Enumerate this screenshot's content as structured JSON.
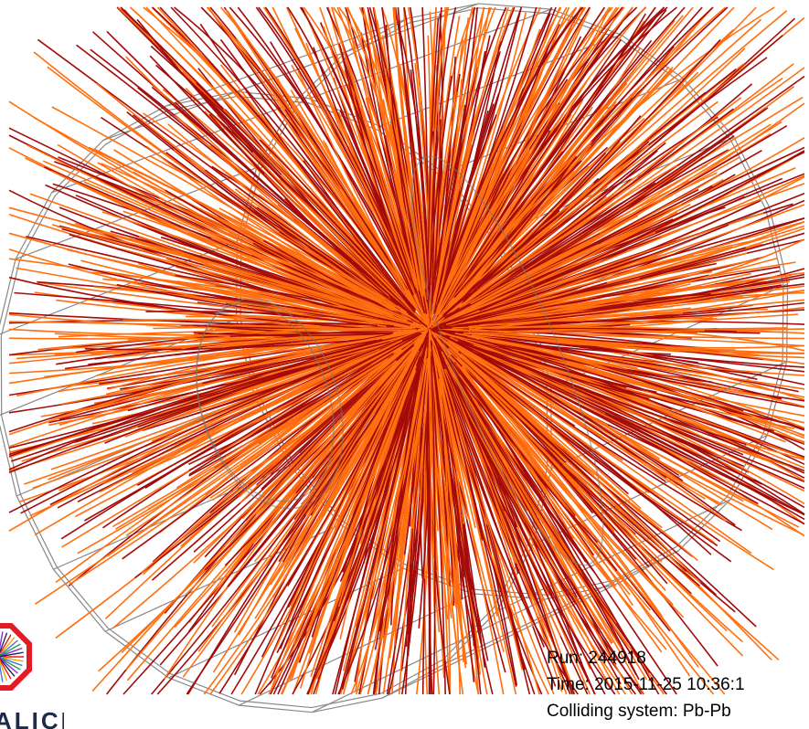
{
  "event_info": {
    "run": "Run: 244918",
    "time": "Time: 2015-11-25 10:36:1",
    "colliding_system": "Colliding system: Pb-Pb"
  },
  "logo": {
    "text": "ALICE",
    "icon": "alice-octagon-logo",
    "colors": {
      "ring": "#e31b23",
      "text": "#1d2a4a"
    }
  },
  "colors": {
    "background": "#ffffff",
    "track_orange": "#ff6f10",
    "track_dark_red": "#a30b0b",
    "detector_outline": "#888888"
  }
}
